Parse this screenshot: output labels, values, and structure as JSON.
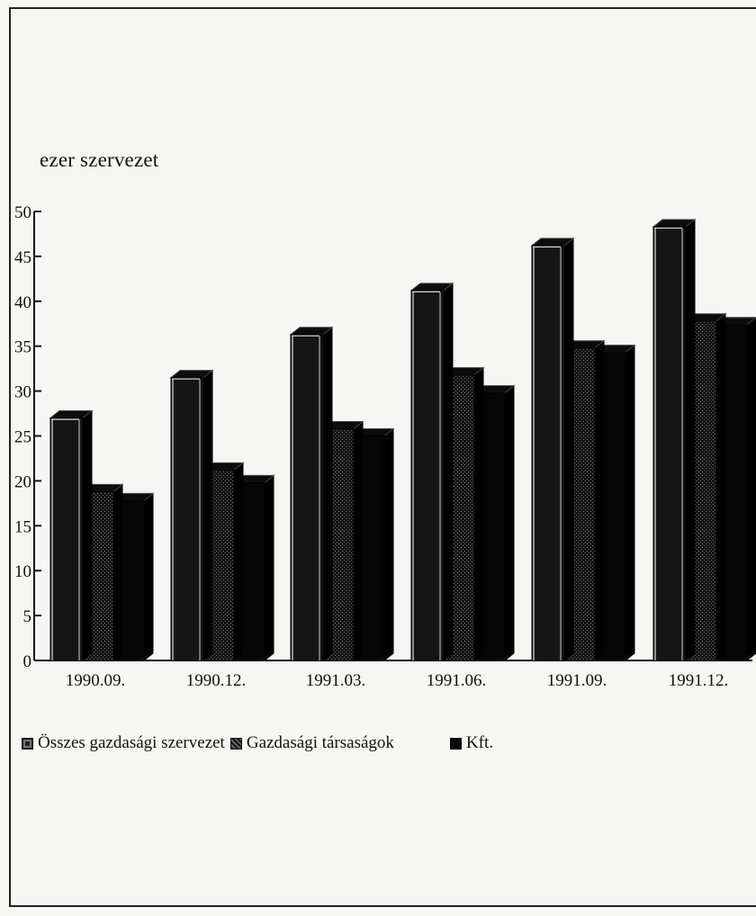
{
  "chart_data": {
    "type": "bar",
    "ylabel": "ezer szervezet",
    "ylim": [
      0,
      50
    ],
    "yticks": [
      0,
      5,
      10,
      15,
      20,
      25,
      30,
      35,
      40,
      45,
      50
    ],
    "categories": [
      "1990.09.",
      "1990.12.",
      "1991.03.",
      "1991.06.",
      "1991.09.",
      "1991.12."
    ],
    "series": [
      {
        "name": "Összes gazdasági szervezet",
        "values": [
          27,
          31.5,
          36.3,
          41.2,
          46.2,
          48.3
        ],
        "color": "#141414"
      },
      {
        "name": "Gazdasági társaságok",
        "values": [
          18.8,
          21.2,
          25.8,
          31.8,
          34.8,
          37.8
        ],
        "color": "#2a2a2a"
      },
      {
        "name": "Kft.",
        "values": [
          17.8,
          19.8,
          25,
          29.8,
          34.3,
          37.4
        ],
        "color": "#050505"
      }
    ],
    "grid": false,
    "legend": "bottom"
  }
}
